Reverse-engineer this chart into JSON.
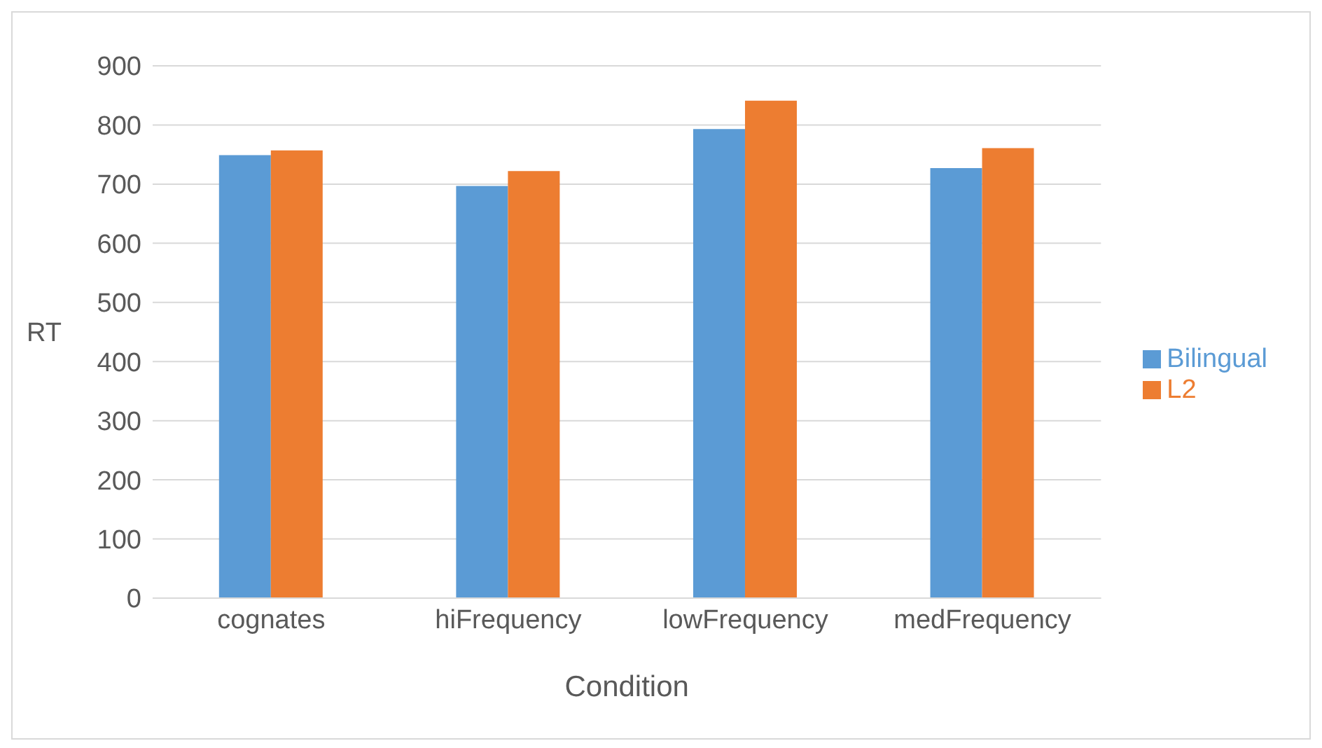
{
  "chart_data": {
    "type": "bar",
    "xlabel": "Condition",
    "ylabel": "RT",
    "categories": [
      "cognates",
      "hiFrequency",
      "lowFrequency",
      "medFrequency"
    ],
    "series": [
      {
        "name": "Bilingual",
        "color": "#5b9bd5",
        "values": [
          749,
          697,
          793,
          727
        ]
      },
      {
        "name": "L2",
        "color": "#ed7d31",
        "values": [
          757,
          722,
          841,
          761
        ]
      }
    ],
    "ylim": [
      0,
      900
    ],
    "yticks": [
      0,
      100,
      200,
      300,
      400,
      500,
      600,
      700,
      800,
      900
    ],
    "grid": "y",
    "legend": "right"
  }
}
